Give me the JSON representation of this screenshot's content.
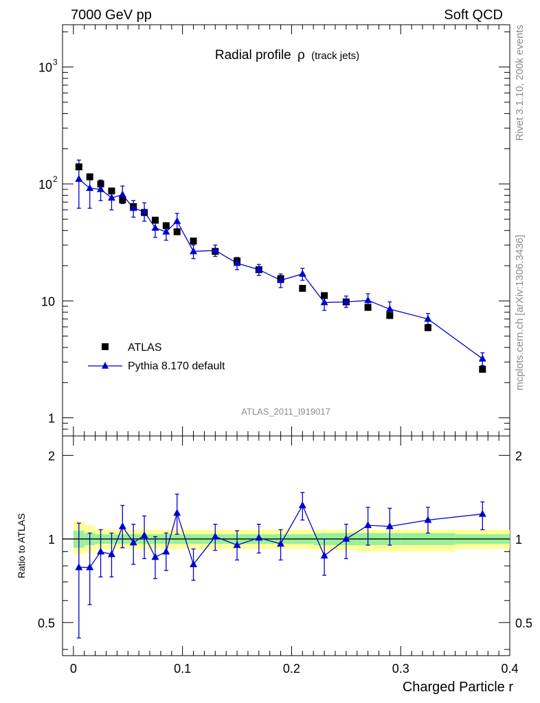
{
  "header": {
    "left": "7000 GeV pp",
    "right": "Soft QCD"
  },
  "sidebar": {
    "rivet": "Rivet 3.1.10,  200k events",
    "mcplots": "mcplots.cern.ch [arXiv:1306.3436]"
  },
  "colors": {
    "data": "#000000",
    "mc": "#0000cc",
    "band_inner": "#99f099",
    "band_outer": "#ffff99"
  },
  "chart_data": [
    {
      "type": "scatter",
      "title_main": "Radial profile",
      "title_symbol": "ρ",
      "title_sub": "(track jets)",
      "watermark": "ATLAS_2011_I919017",
      "xlabel": "Charged Particle r",
      "ylabel": "",
      "yscale": "log",
      "xlim": [
        -0.01,
        0.4
      ],
      "ylim": [
        0.7,
        2300
      ],
      "yticks": [
        {
          "value": 1,
          "label": "1",
          "sup": ""
        },
        {
          "value": 10,
          "label": "10",
          "sup": ""
        },
        {
          "value": 100,
          "label": "10",
          "sup": "2"
        },
        {
          "value": 1000,
          "label": "10",
          "sup": "3"
        }
      ],
      "legend_position": "lower-left",
      "series": [
        {
          "name": "ATLAS",
          "marker": "square",
          "x": [
            0.005,
            0.015,
            0.025,
            0.035,
            0.045,
            0.055,
            0.065,
            0.075,
            0.085,
            0.095,
            0.11,
            0.13,
            0.15,
            0.17,
            0.19,
            0.21,
            0.23,
            0.25,
            0.27,
            0.29,
            0.325,
            0.375
          ],
          "y": [
            140,
            115,
            100,
            87,
            73,
            64,
            57,
            49,
            44,
            39,
            32.5,
            26.5,
            22,
            18.5,
            15.5,
            12.8,
            11.1,
            9.8,
            8.8,
            7.5,
            5.9,
            2.6
          ]
        },
        {
          "name": "Pythia 8.170 default",
          "marker": "triangle",
          "x": [
            0.005,
            0.015,
            0.025,
            0.035,
            0.045,
            0.055,
            0.065,
            0.075,
            0.085,
            0.095,
            0.11,
            0.13,
            0.15,
            0.17,
            0.19,
            0.21,
            0.23,
            0.25,
            0.27,
            0.29,
            0.325,
            0.375
          ],
          "y": [
            110,
            92,
            90,
            76,
            81,
            62,
            58,
            42,
            39,
            48,
            26.5,
            27,
            21,
            18.5,
            15,
            17,
            9.7,
            9.8,
            10.1,
            8.5,
            7,
            3.2
          ],
          "y_low": [
            62,
            62,
            72,
            60,
            68,
            52,
            48,
            35,
            33,
            40,
            23,
            24,
            18.5,
            16.5,
            13,
            15,
            8.3,
            8.8,
            8.9,
            7.3,
            6.3,
            2.8
          ],
          "y_high": [
            160,
            122,
            108,
            92,
            96,
            72,
            69,
            50,
            46,
            56,
            30,
            30,
            23.5,
            20.5,
            17,
            19,
            11,
            11,
            11.5,
            9.8,
            7.8,
            3.6
          ]
        }
      ]
    },
    {
      "type": "line",
      "ylabel": "Ratio to ATLAS",
      "xlabel": "Charged Particle r",
      "xlim": [
        -0.01,
        0.4
      ],
      "ylim": [
        0.38,
        2.35
      ],
      "yscale": "log",
      "xticks": [
        {
          "value": 0,
          "label": "0"
        },
        {
          "value": 0.1,
          "label": "0.1"
        },
        {
          "value": 0.2,
          "label": "0.2"
        },
        {
          "value": 0.3,
          "label": "0.3"
        },
        {
          "value": 0.4,
          "label": "0.4"
        }
      ],
      "yticks": [
        {
          "value": 0.5,
          "label": "0.5"
        },
        {
          "value": 1,
          "label": "1"
        },
        {
          "value": 2,
          "label": "2"
        }
      ],
      "reference": 1,
      "bands": [
        {
          "x0": 0.0,
          "x1": 0.01,
          "inner": [
            0.93,
            1.07
          ],
          "outer": [
            0.88,
            1.16
          ]
        },
        {
          "x0": 0.01,
          "x1": 0.02,
          "inner": [
            0.95,
            1.05
          ],
          "outer": [
            0.89,
            1.12
          ]
        },
        {
          "x0": 0.02,
          "x1": 0.03,
          "inner": [
            0.96,
            1.04
          ],
          "outer": [
            0.92,
            1.08
          ]
        },
        {
          "x0": 0.03,
          "x1": 0.04,
          "inner": [
            0.96,
            1.04
          ],
          "outer": [
            0.92,
            1.08
          ]
        },
        {
          "x0": 0.04,
          "x1": 0.05,
          "inner": [
            0.96,
            1.04
          ],
          "outer": [
            0.92,
            1.08
          ]
        },
        {
          "x0": 0.05,
          "x1": 0.06,
          "inner": [
            0.96,
            1.04
          ],
          "outer": [
            0.92,
            1.08
          ]
        },
        {
          "x0": 0.06,
          "x1": 0.07,
          "inner": [
            0.96,
            1.04
          ],
          "outer": [
            0.92,
            1.08
          ]
        },
        {
          "x0": 0.07,
          "x1": 0.08,
          "inner": [
            0.96,
            1.04
          ],
          "outer": [
            0.92,
            1.08
          ]
        },
        {
          "x0": 0.08,
          "x1": 0.09,
          "inner": [
            0.96,
            1.04
          ],
          "outer": [
            0.92,
            1.08
          ]
        },
        {
          "x0": 0.09,
          "x1": 0.1,
          "inner": [
            0.96,
            1.04
          ],
          "outer": [
            0.92,
            1.08
          ]
        },
        {
          "x0": 0.1,
          "x1": 0.12,
          "inner": [
            0.96,
            1.04
          ],
          "outer": [
            0.92,
            1.08
          ]
        },
        {
          "x0": 0.12,
          "x1": 0.14,
          "inner": [
            0.96,
            1.04
          ],
          "outer": [
            0.92,
            1.08
          ]
        },
        {
          "x0": 0.14,
          "x1": 0.16,
          "inner": [
            0.96,
            1.04
          ],
          "outer": [
            0.92,
            1.08
          ]
        },
        {
          "x0": 0.16,
          "x1": 0.18,
          "inner": [
            0.96,
            1.04
          ],
          "outer": [
            0.92,
            1.08
          ]
        },
        {
          "x0": 0.18,
          "x1": 0.2,
          "inner": [
            0.96,
            1.04
          ],
          "outer": [
            0.92,
            1.08
          ]
        },
        {
          "x0": 0.2,
          "x1": 0.22,
          "inner": [
            0.96,
            1.04
          ],
          "outer": [
            0.92,
            1.08
          ]
        },
        {
          "x0": 0.22,
          "x1": 0.24,
          "inner": [
            0.95,
            1.05
          ],
          "outer": [
            0.91,
            1.08
          ]
        },
        {
          "x0": 0.24,
          "x1": 0.26,
          "inner": [
            0.95,
            1.05
          ],
          "outer": [
            0.91,
            1.08
          ]
        },
        {
          "x0": 0.26,
          "x1": 0.28,
          "inner": [
            0.95,
            1.05
          ],
          "outer": [
            0.9,
            1.08
          ]
        },
        {
          "x0": 0.28,
          "x1": 0.3,
          "inner": [
            0.95,
            1.05
          ],
          "outer": [
            0.9,
            1.08
          ]
        },
        {
          "x0": 0.3,
          "x1": 0.35,
          "inner": [
            0.95,
            1.05
          ],
          "outer": [
            0.9,
            1.08
          ]
        },
        {
          "x0": 0.35,
          "x1": 0.4,
          "inner": [
            0.96,
            1.04
          ],
          "outer": [
            0.92,
            1.08
          ]
        }
      ],
      "series": [
        {
          "name": "Pythia 8.170 default",
          "x": [
            0.005,
            0.015,
            0.025,
            0.035,
            0.045,
            0.055,
            0.065,
            0.075,
            0.085,
            0.095,
            0.11,
            0.13,
            0.15,
            0.17,
            0.19,
            0.21,
            0.23,
            0.25,
            0.27,
            0.29,
            0.325,
            0.375
          ],
          "y": [
            0.79,
            0.79,
            0.9,
            0.88,
            1.11,
            0.97,
            1.03,
            0.86,
            0.9,
            1.24,
            0.81,
            1.02,
            0.95,
            1.01,
            0.96,
            1.32,
            0.87,
            1.0,
            1.12,
            1.11,
            1.17,
            1.23
          ],
          "y_low": [
            0.44,
            0.58,
            0.73,
            0.73,
            0.93,
            0.81,
            0.85,
            0.72,
            0.77,
            1.04,
            0.71,
            0.91,
            0.84,
            0.89,
            0.84,
            1.17,
            0.74,
            0.85,
            0.95,
            0.95,
            1.05,
            1.08
          ],
          "y_high": [
            1.14,
            1.05,
            1.08,
            1.05,
            1.32,
            1.13,
            1.21,
            1.02,
            1.05,
            1.45,
            0.92,
            1.13,
            1.07,
            1.13,
            1.08,
            1.47,
            1.0,
            1.13,
            1.3,
            1.29,
            1.3,
            1.36
          ]
        }
      ]
    }
  ]
}
